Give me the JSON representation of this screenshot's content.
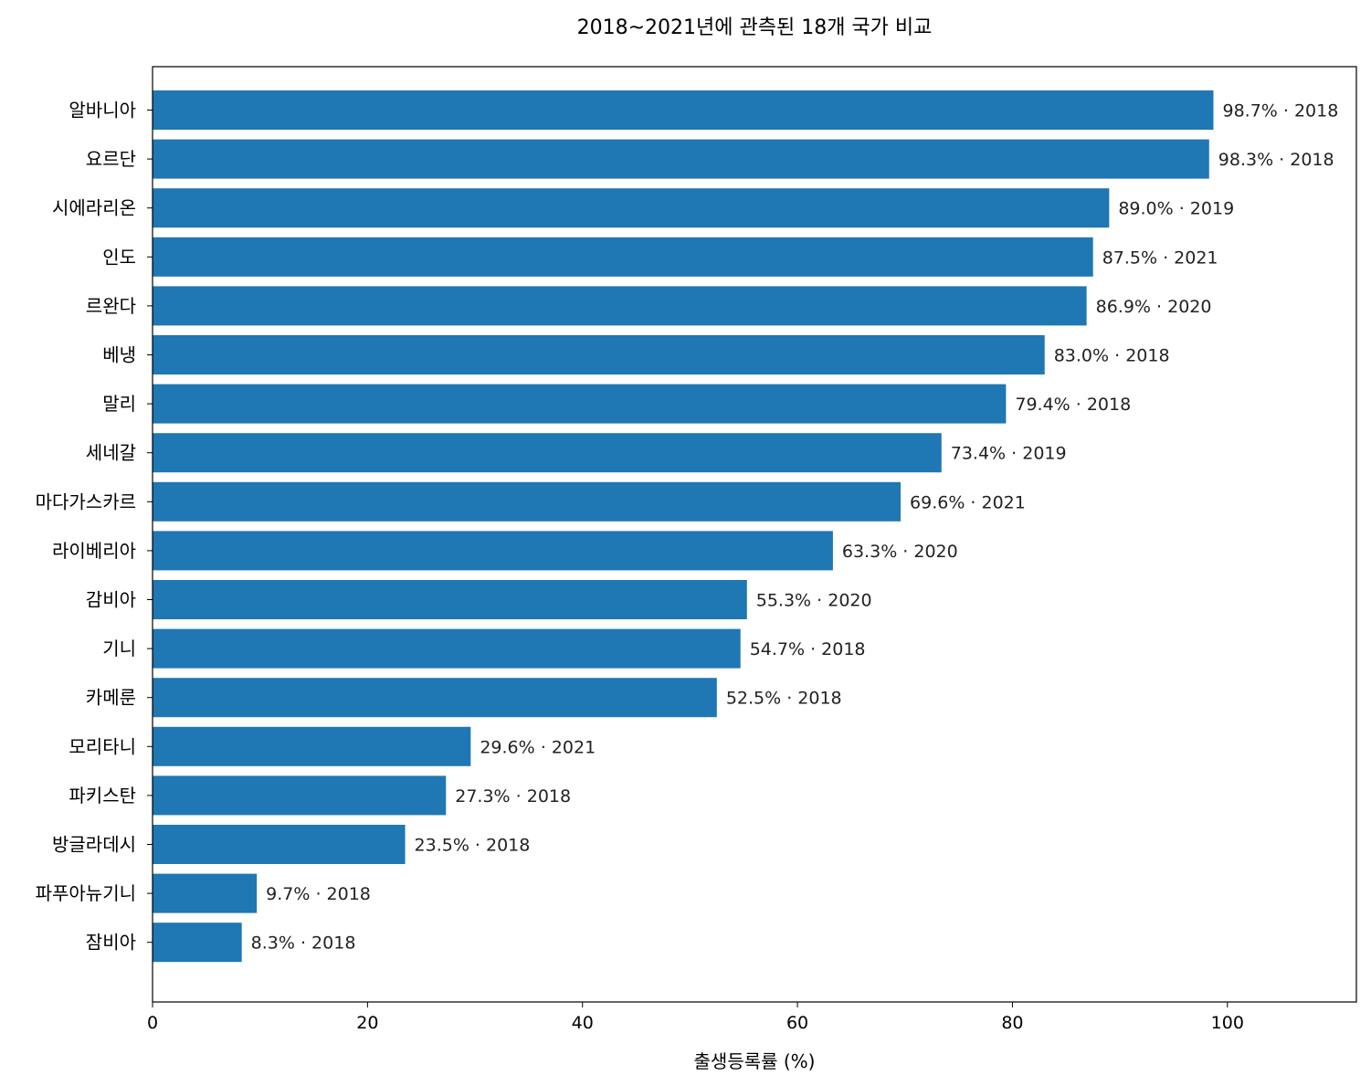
{
  "chart_data": {
    "type": "bar",
    "orientation": "horizontal",
    "title": "2018~2021년에 관측된 18개 국가 비교",
    "xlabel": "출생등록률 (%)",
    "ylabel": "",
    "xlim": [
      0,
      112
    ],
    "xticks": [
      0,
      20,
      40,
      60,
      80,
      100
    ],
    "grid": false,
    "bar_color": "#1f77b4",
    "categories": [
      "알바니아",
      "요르단",
      "시에라리온",
      "인도",
      "르완다",
      "베냉",
      "말리",
      "세네갈",
      "마다가스카르",
      "라이베리아",
      "감비아",
      "기니",
      "카메룬",
      "모리타니",
      "파키스탄",
      "방글라데시",
      "파푸아뉴기니",
      "잠비아"
    ],
    "values": [
      98.7,
      98.3,
      89.0,
      87.5,
      86.9,
      83.0,
      79.4,
      73.4,
      69.6,
      63.3,
      55.3,
      54.7,
      52.5,
      29.6,
      27.3,
      23.5,
      9.7,
      8.3
    ],
    "years": [
      "2018",
      "2018",
      "2019",
      "2021",
      "2020",
      "2018",
      "2018",
      "2019",
      "2021",
      "2020",
      "2020",
      "2018",
      "2018",
      "2021",
      "2018",
      "2018",
      "2018",
      "2018"
    ],
    "data_labels": [
      "98.7% · 2018",
      "98.3% · 2018",
      "89.0% · 2019",
      "87.5% · 2021",
      "86.9% · 2020",
      "83.0% · 2018",
      "79.4% · 2018",
      "73.4% · 2019",
      "69.6% · 2021",
      "63.3% · 2020",
      "55.3% · 2020",
      "54.7% · 2018",
      "52.5% · 2018",
      "29.6% · 2021",
      "27.3% · 2018",
      "23.5% · 2018",
      "9.7% · 2018",
      "8.3% · 2018"
    ]
  }
}
